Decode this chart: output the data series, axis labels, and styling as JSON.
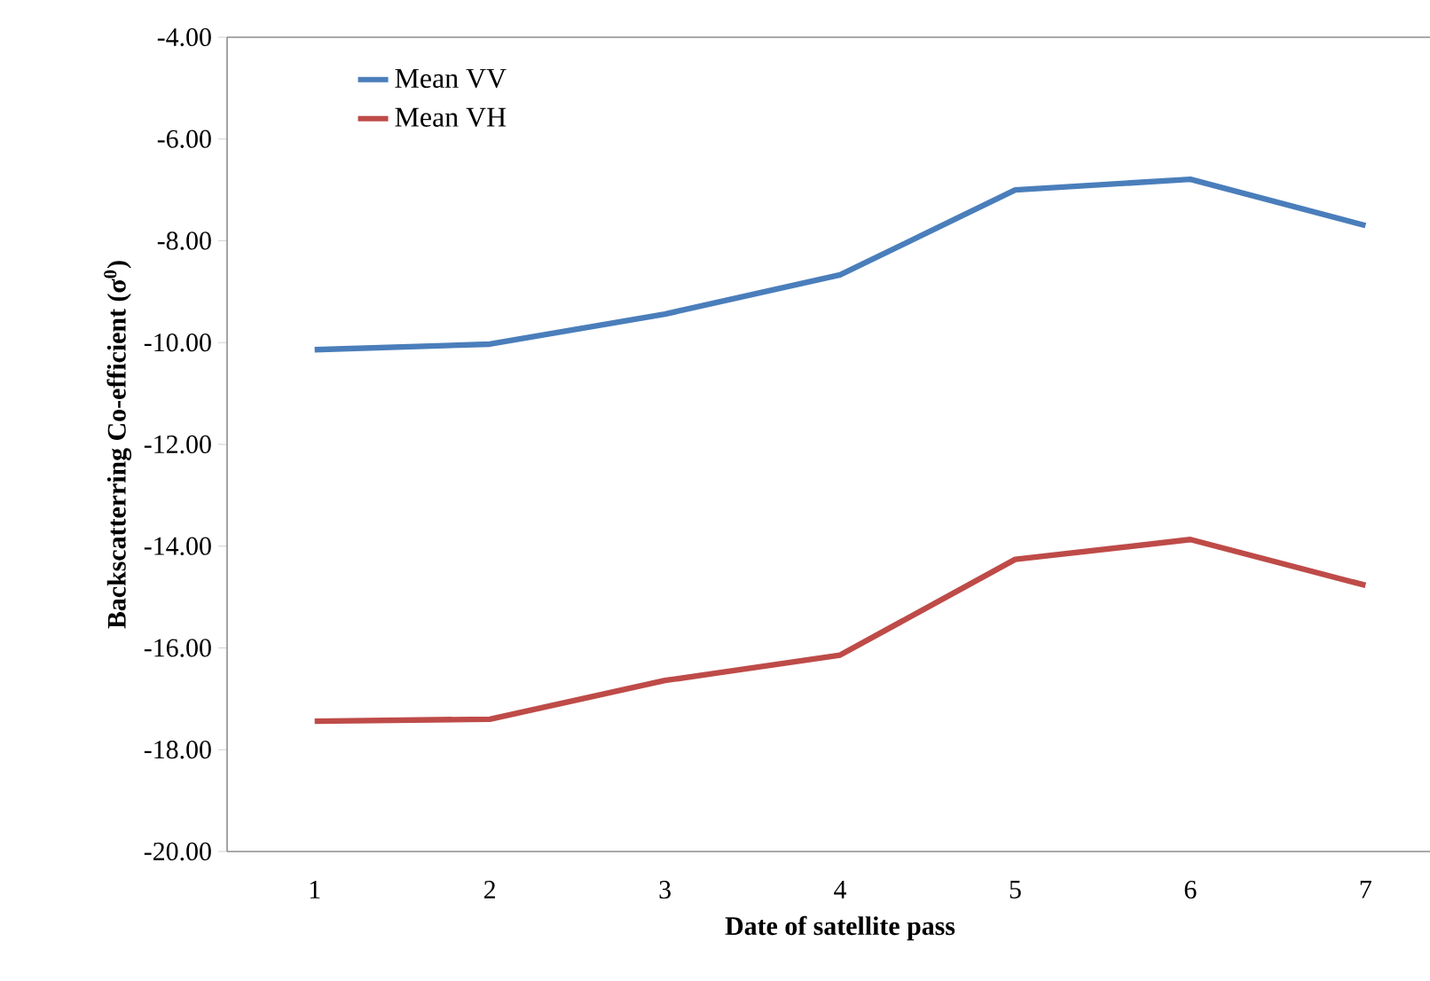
{
  "chart_data": {
    "type": "line",
    "xlabel": "Date of satellite pass",
    "ylabel": "Backscatterring Co-efficient  (σ$^{0}$)",
    "categories": [
      "1",
      "2",
      "3",
      "4",
      "5",
      "6",
      "7"
    ],
    "series": [
      {
        "name": "Mean VV",
        "color": "#4a7ebb",
        "values": [
          -10.14,
          -10.03,
          -9.44,
          -8.67,
          -7.0,
          -6.79,
          -7.7
        ]
      },
      {
        "name": "Mean VH",
        "color": "#be4b48",
        "values": [
          -17.44,
          -17.4,
          -16.64,
          -16.14,
          -14.26,
          -13.87,
          -14.77
        ]
      }
    ],
    "ylim": [
      -20,
      -4
    ],
    "yticks": [
      {
        "value": -20,
        "label": "-20.00"
      },
      {
        "value": -18,
        "label": "-18.00"
      },
      {
        "value": -16,
        "label": "-16.00"
      },
      {
        "value": -14,
        "label": "-14.00"
      },
      {
        "value": -12,
        "label": "-12.00"
      },
      {
        "value": -10,
        "label": "-10.00"
      },
      {
        "value": -8,
        "label": "-8.00"
      },
      {
        "value": -6,
        "label": "-6.00"
      },
      {
        "value": -4,
        "label": "-4.00"
      }
    ],
    "grid": false,
    "legend": "top left",
    "marker": "none",
    "line_style": "solid"
  }
}
